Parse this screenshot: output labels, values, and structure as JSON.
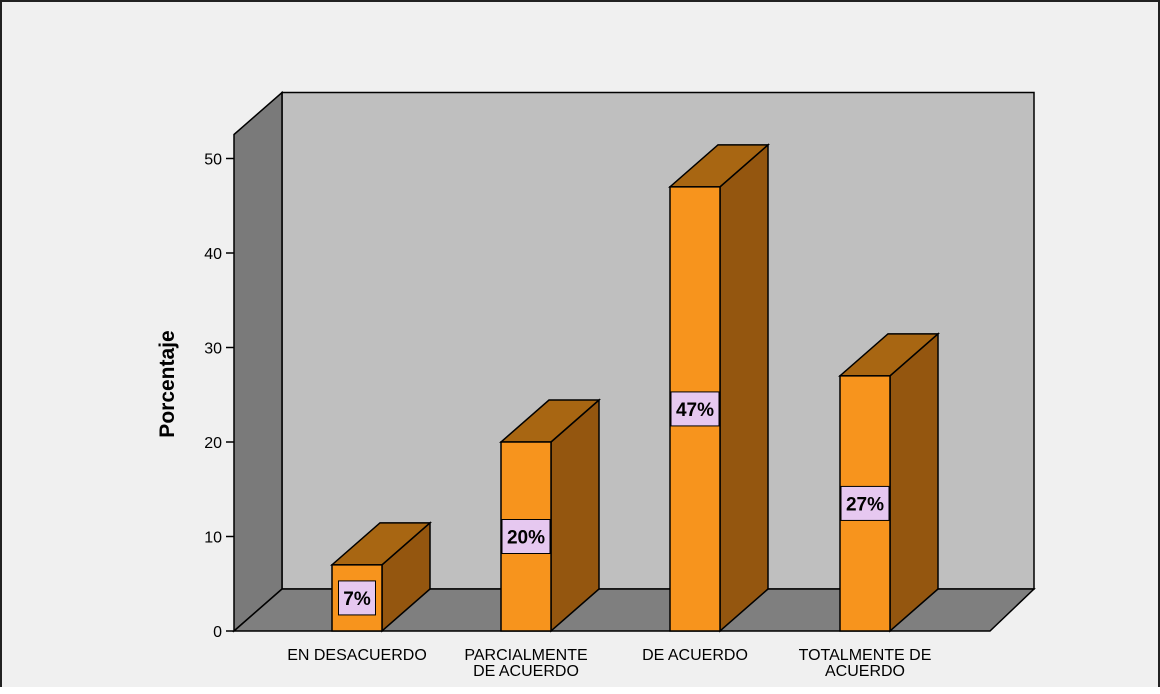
{
  "chart_data": {
    "type": "bar",
    "style": "3d-bar",
    "categories": [
      [
        "EN DESACUERDO"
      ],
      [
        "PARCIALMENTE",
        "DE ACUERDO"
      ],
      [
        "DE ACUERDO"
      ],
      [
        "TOTALMENTE DE",
        "ACUERDO"
      ]
    ],
    "values": [
      7,
      20,
      47,
      27
    ],
    "value_labels": [
      "7%",
      "20%",
      "47%",
      "27%"
    ],
    "title": "",
    "xlabel": "",
    "ylabel": "Porcentaje",
    "ylim": [
      0,
      50
    ],
    "yticks": [
      "0",
      "10",
      "20",
      "30",
      "40",
      "50"
    ],
    "grid": false,
    "legend": "none"
  },
  "colors": {
    "background": "#f0f0f0",
    "back_wall": "#bfbfbf",
    "side_wall": "#7a7a7a",
    "floor": "#7f7f7f",
    "bar_front": "#f7941d",
    "bar_top": "#a86612",
    "bar_side": "#94560f",
    "label_box": "#e6c8f0"
  }
}
